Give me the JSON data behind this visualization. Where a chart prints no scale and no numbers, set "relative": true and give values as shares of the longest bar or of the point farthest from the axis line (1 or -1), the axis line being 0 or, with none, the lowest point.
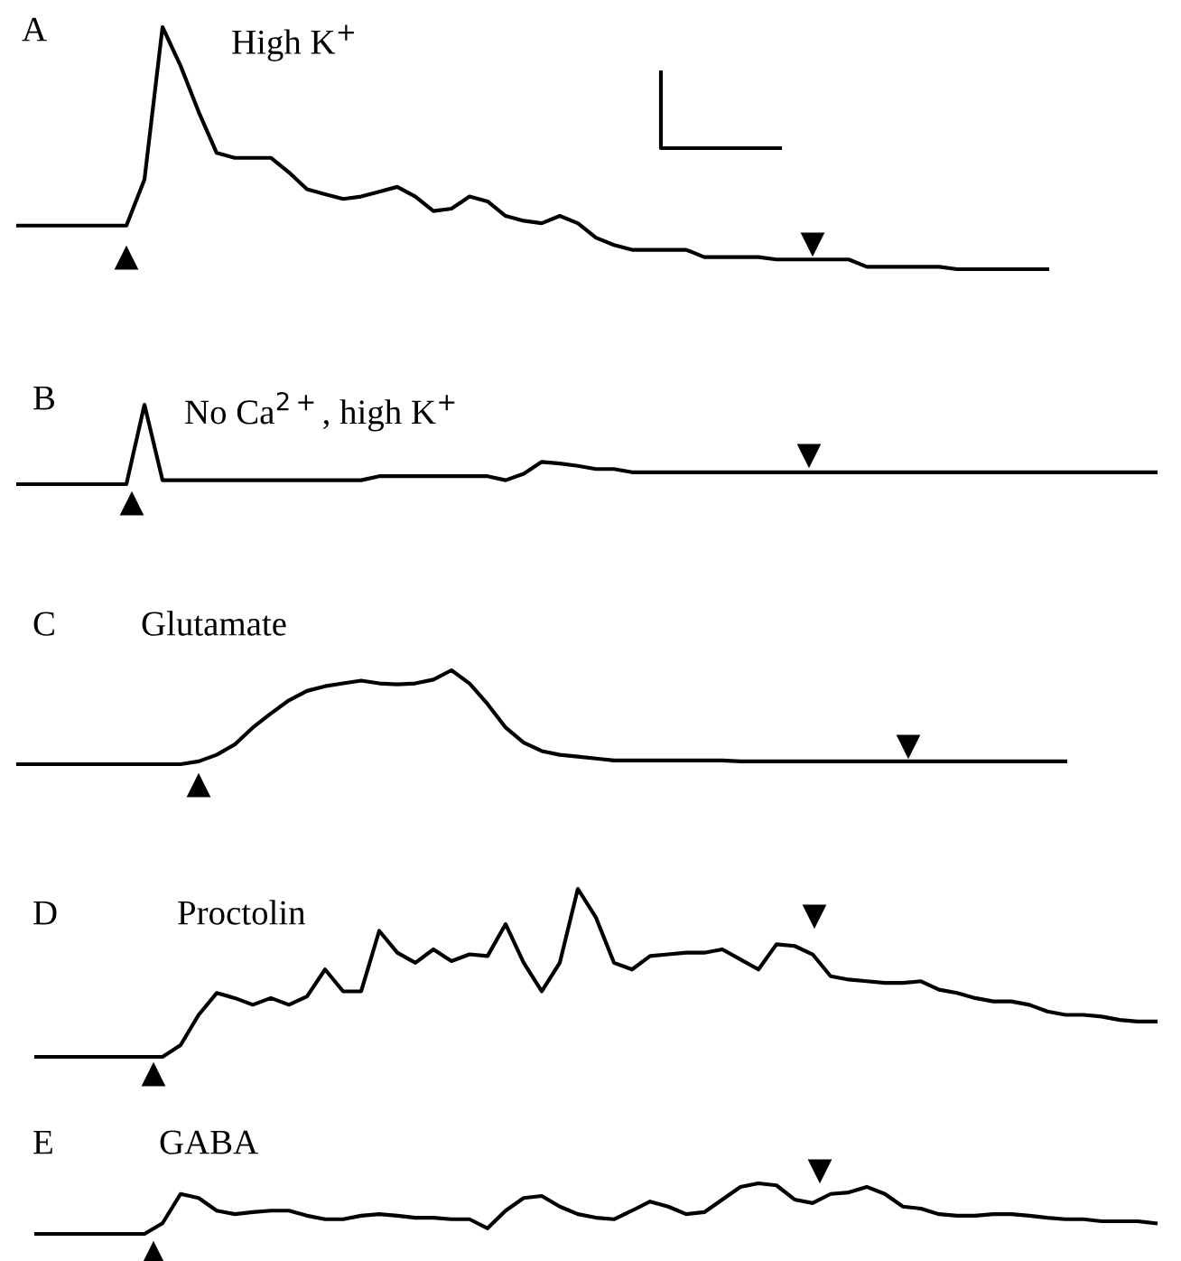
{
  "chart_data": [
    {
      "type": "line",
      "title": "A",
      "subtitle": "High K$^{+}$",
      "relative": true,
      "categories": [
        null,
        null,
        null,
        null,
        null,
        null,
        null,
        null,
        null,
        null,
        null,
        null,
        null,
        null,
        null,
        null,
        null,
        null,
        null,
        null,
        null,
        null,
        null,
        null,
        null,
        null,
        null,
        null,
        null,
        null,
        null,
        null,
        null,
        null,
        null,
        null,
        null,
        null,
        null,
        null,
        null,
        null,
        null,
        null,
        null,
        null,
        null,
        null,
        null,
        null,
        null,
        null,
        null,
        null,
        null,
        null,
        null,
        null,
        null,
        null,
        null,
        null,
        null,
        null
      ],
      "series": [
        {
          "color": "#000000",
          "values": [
            0.18,
            0.18,
            0.18,
            0.18,
            0.18,
            0.18,
            0.18,
            0.37,
            1.0,
            0.84,
            0.65,
            0.48,
            0.46,
            0.46,
            0.46,
            0.4,
            0.33,
            0.31,
            0.29,
            0.3,
            0.32,
            0.34,
            0.3,
            0.24,
            0.25,
            0.3,
            0.28,
            0.22,
            0.2,
            0.19,
            0.22,
            0.19,
            0.13,
            0.1,
            0.08,
            0.08,
            0.08,
            0.08,
            0.05,
            0.05,
            0.05,
            0.05,
            0.04,
            0.04,
            0.04,
            0.04,
            0.04,
            0.01,
            0.01,
            0.01,
            0.01,
            0.01,
            0,
            0,
            0,
            0,
            0,
            0,
            null,
            null,
            null,
            null,
            null,
            null
          ]
        }
      ]
    },
    {
      "type": "line",
      "title": "B",
      "subtitle": "No Ca$^{2+}$, high K$^{+}$",
      "relative": true,
      "categories": [
        null,
        null,
        null,
        null,
        null,
        null,
        null,
        null,
        null,
        null,
        null,
        null,
        null,
        null,
        null,
        null,
        null,
        null,
        null,
        null,
        null,
        null,
        null,
        null,
        null,
        null,
        null,
        null,
        null,
        null,
        null,
        null,
        null,
        null,
        null,
        null,
        null,
        null,
        null,
        null,
        null,
        null,
        null,
        null,
        null,
        null,
        null,
        null,
        null,
        null,
        null,
        null,
        null,
        null,
        null,
        null,
        null,
        null,
        null,
        null,
        null,
        null,
        null,
        null
      ],
      "series": [
        {
          "color": "#000000",
          "values": [
            0,
            0,
            0,
            0,
            0,
            0,
            0,
            1.0,
            0.05,
            0.05,
            0.05,
            0.05,
            0.05,
            0.05,
            0.05,
            0.05,
            0.05,
            0.05,
            0.05,
            0.05,
            0.1,
            0.1,
            0.1,
            0.1,
            0.1,
            0.1,
            0.1,
            0.05,
            0.13,
            0.28,
            0.26,
            0.23,
            0.19,
            0.19,
            0.15,
            0.15,
            0.15,
            0.15,
            0.15,
            0.15,
            0.15,
            0.15,
            0.15,
            0.15,
            0.15,
            0.15,
            0.15,
            0.15,
            0.15,
            0.15,
            0.15,
            0.15,
            0.15,
            0.15,
            0.15,
            0.15,
            0.15,
            0.15,
            0.15,
            0.15,
            0.15,
            0.15,
            0.15,
            0.15
          ]
        }
      ]
    },
    {
      "type": "line",
      "title": "C",
      "subtitle": "Glutamate",
      "relative": true,
      "categories": [
        null,
        null,
        null,
        null,
        null,
        null,
        null,
        null,
        null,
        null,
        null,
        null,
        null,
        null,
        null,
        null,
        null,
        null,
        null,
        null,
        null,
        null,
        null,
        null,
        null,
        null,
        null,
        null,
        null,
        null,
        null,
        null,
        null,
        null,
        null,
        null,
        null,
        null,
        null,
        null,
        null,
        null,
        null,
        null,
        null,
        null,
        null,
        null,
        null,
        null,
        null,
        null,
        null,
        null,
        null,
        null,
        null,
        null,
        null,
        null,
        null,
        null,
        null,
        null
      ],
      "series": [
        {
          "color": "#000000",
          "values": [
            0,
            0,
            0,
            0,
            0,
            0,
            0,
            0,
            0,
            0,
            0.03,
            0.1,
            0.21,
            0.39,
            0.54,
            0.68,
            0.78,
            0.83,
            0.86,
            0.89,
            0.86,
            0.85,
            0.86,
            0.9,
            1.0,
            0.86,
            0.64,
            0.39,
            0.23,
            0.14,
            0.1,
            0.08,
            0.06,
            0.04,
            0.04,
            0.04,
            0.04,
            0.04,
            0.04,
            0.04,
            0.03,
            0.03,
            0.03,
            0.03,
            0.03,
            0.03,
            0.03,
            0.03,
            0.03,
            0.03,
            0.03,
            0.03,
            0.03,
            0.03,
            0.03,
            0.03,
            0.03,
            0.03,
            0.03,
            null,
            null,
            null,
            null,
            null
          ]
        }
      ]
    },
    {
      "type": "line",
      "title": "D",
      "subtitle": "Proctolin",
      "relative": true,
      "categories": [
        null,
        null,
        null,
        null,
        null,
        null,
        null,
        null,
        null,
        null,
        null,
        null,
        null,
        null,
        null,
        null,
        null,
        null,
        null,
        null,
        null,
        null,
        null,
        null,
        null,
        null,
        null,
        null,
        null,
        null,
        null,
        null,
        null,
        null,
        null,
        null,
        null,
        null,
        null,
        null,
        null,
        null,
        null,
        null,
        null,
        null,
        null,
        null,
        null,
        null,
        null,
        null,
        null,
        null,
        null,
        null,
        null,
        null,
        null,
        null,
        null,
        null,
        null,
        null
      ],
      "series": [
        {
          "color": "#000000",
          "values": [
            null,
            0,
            0,
            0,
            0,
            0,
            0,
            0,
            0,
            0.07,
            0.25,
            0.38,
            0.35,
            0.31,
            0.35,
            0.31,
            0.36,
            0.52,
            0.39,
            0.39,
            0.75,
            0.62,
            0.56,
            0.64,
            0.57,
            0.61,
            0.6,
            0.79,
            0.56,
            0.39,
            0.56,
            1.0,
            0.83,
            0.56,
            0.52,
            0.6,
            0.61,
            0.62,
            0.62,
            0.64,
            0.58,
            0.52,
            0.67,
            0.66,
            0.61,
            0.48,
            0.46,
            0.45,
            0.44,
            0.44,
            0.45,
            0.4,
            0.38,
            0.35,
            0.33,
            0.33,
            0.31,
            0.27,
            0.25,
            0.25,
            0.24,
            0.22,
            0.21,
            0.21
          ]
        }
      ]
    },
    {
      "type": "line",
      "title": "E",
      "subtitle": "GABA",
      "relative": true,
      "categories": [
        null,
        null,
        null,
        null,
        null,
        null,
        null,
        null,
        null,
        null,
        null,
        null,
        null,
        null,
        null,
        null,
        null,
        null,
        null,
        null,
        null,
        null,
        null,
        null,
        null,
        null,
        null,
        null,
        null,
        null,
        null,
        null,
        null,
        null,
        null,
        null,
        null,
        null,
        null,
        null,
        null,
        null,
        null,
        null,
        null,
        null,
        null,
        null,
        null,
        null,
        null,
        null,
        null,
        null,
        null,
        null,
        null,
        null,
        null,
        null,
        null,
        null,
        null,
        null
      ],
      "series": [
        {
          "color": "#000000",
          "values": [
            null,
            0,
            0,
            0,
            0,
            0,
            0,
            0,
            0.21,
            0.79,
            0.71,
            0.46,
            0.39,
            0.43,
            0.46,
            0.46,
            0.36,
            0.29,
            0.29,
            0.36,
            0.39,
            0.36,
            0.32,
            0.32,
            0.29,
            0.29,
            0.11,
            0.46,
            0.71,
            0.75,
            0.54,
            0.39,
            0.32,
            0.29,
            0.46,
            0.64,
            0.54,
            0.39,
            0.43,
            0.68,
            0.93,
            1.0,
            0.96,
            0.68,
            0.61,
            0.79,
            0.82,
            0.93,
            0.79,
            0.54,
            0.5,
            0.39,
            0.36,
            0.36,
            0.39,
            0.39,
            0.36,
            0.32,
            0.29,
            0.29,
            0.25,
            0.25,
            0.25,
            0.21
          ]
        }
      ]
    }
  ]
}
